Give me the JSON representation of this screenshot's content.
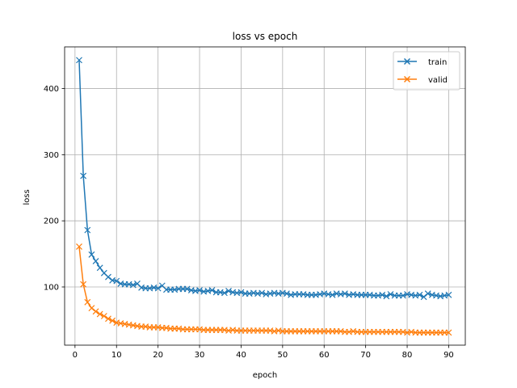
{
  "chart_data": {
    "type": "line",
    "title": "loss vs epoch",
    "xlabel": "epoch",
    "ylabel": "loss",
    "xlim": [
      -2.5,
      94
    ],
    "ylim": [
      12,
      463
    ],
    "xticks": [
      0,
      10,
      20,
      30,
      40,
      50,
      60,
      70,
      80,
      90
    ],
    "yticks": [
      100,
      200,
      300,
      400
    ],
    "grid": true,
    "legend_position": "top-right",
    "marker": "x",
    "series": [
      {
        "name": "train",
        "color": "#1f77b4",
        "x": [
          1,
          2,
          3,
          4,
          5,
          6,
          7,
          8,
          9,
          10,
          11,
          12,
          13,
          14,
          15,
          16,
          17,
          18,
          19,
          20,
          21,
          22,
          23,
          24,
          25,
          26,
          27,
          28,
          29,
          30,
          31,
          32,
          33,
          34,
          35,
          36,
          37,
          38,
          39,
          40,
          41,
          42,
          43,
          44,
          45,
          46,
          47,
          48,
          49,
          50,
          51,
          52,
          53,
          54,
          55,
          56,
          57,
          58,
          59,
          60,
          61,
          62,
          63,
          64,
          65,
          66,
          67,
          68,
          69,
          70,
          71,
          72,
          73,
          74,
          75,
          76,
          77,
          78,
          79,
          80,
          81,
          82,
          83,
          84,
          85,
          86,
          87,
          88,
          89,
          90
        ],
        "values": [
          443,
          268,
          186,
          149,
          139,
          129,
          121,
          115,
          110,
          109,
          105,
          104,
          104,
          103,
          105,
          99,
          98,
          98,
          99,
          98,
          102,
          96,
          96,
          96,
          97,
          97,
          97,
          95,
          94,
          95,
          93,
          94,
          95,
          92,
          92,
          91,
          94,
          92,
          91,
          92,
          90,
          90,
          91,
          90,
          91,
          89,
          90,
          91,
          90,
          91,
          90,
          88,
          89,
          89,
          89,
          88,
          88,
          88,
          89,
          90,
          89,
          88,
          90,
          89,
          90,
          88,
          89,
          88,
          88,
          88,
          88,
          87,
          87,
          88,
          86,
          89,
          87,
          87,
          87,
          89,
          88,
          87,
          88,
          85,
          90,
          88,
          87,
          86,
          87,
          88
        ]
      },
      {
        "name": "valid",
        "color": "#ff7f0e",
        "x": [
          1,
          2,
          3,
          4,
          5,
          6,
          7,
          8,
          9,
          10,
          11,
          12,
          13,
          14,
          15,
          16,
          17,
          18,
          19,
          20,
          21,
          22,
          23,
          24,
          25,
          26,
          27,
          28,
          29,
          30,
          31,
          32,
          33,
          34,
          35,
          36,
          37,
          38,
          39,
          40,
          41,
          42,
          43,
          44,
          45,
          46,
          47,
          48,
          49,
          50,
          51,
          52,
          53,
          54,
          55,
          56,
          57,
          58,
          59,
          60,
          61,
          62,
          63,
          64,
          65,
          66,
          67,
          68,
          69,
          70,
          71,
          72,
          73,
          74,
          75,
          76,
          77,
          78,
          79,
          80,
          81,
          82,
          83,
          84,
          85,
          86,
          87,
          88,
          89,
          90
        ],
        "values": [
          161,
          104,
          77,
          68,
          63,
          59,
          56,
          52,
          49,
          46,
          45,
          44,
          43,
          42,
          41,
          40,
          40,
          39,
          39,
          39,
          38,
          38,
          37,
          37,
          37,
          36,
          36,
          36,
          36,
          36,
          35,
          35,
          35,
          35,
          35,
          35,
          34,
          35,
          34,
          34,
          34,
          34,
          34,
          34,
          34,
          34,
          34,
          33,
          34,
          33,
          33,
          33,
          33,
          33,
          33,
          33,
          33,
          33,
          33,
          33,
          33,
          33,
          33,
          33,
          32,
          32,
          33,
          32,
          32,
          32,
          32,
          32,
          32,
          32,
          32,
          32,
          32,
          32,
          32,
          31,
          32,
          31,
          31,
          31,
          31,
          31,
          31,
          31,
          31,
          31
        ]
      }
    ]
  }
}
